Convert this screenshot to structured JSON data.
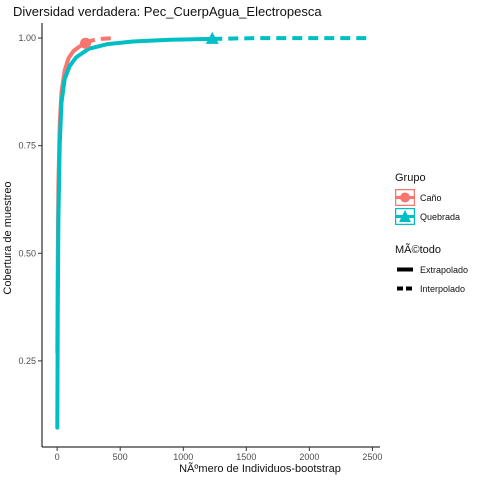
{
  "chart_data": {
    "type": "line",
    "title": "Diversidad verdadera: Pec_CuerpAgua_Electropesca",
    "xlabel": "NÃºmero de Individuos-bootstrap",
    "ylabel": "Cobertura de muestreo",
    "xlim": [
      -120,
      2560
    ],
    "ylim": [
      0.05,
      1.035
    ],
    "xticks": [
      0,
      500,
      1000,
      1500,
      2000,
      2500
    ],
    "xtick_labels": [
      "0",
      "500",
      "1000",
      "1500",
      "2000",
      "2500"
    ],
    "yticks": [
      0.25,
      0.5,
      0.75,
      1.0
    ],
    "ytick_labels": [
      "0.25",
      "0.50",
      "0.75",
      "1.00"
    ],
    "grid": false,
    "legend_position": "right",
    "series": [
      {
        "name": "Caño",
        "color": "#F8766D",
        "marker": "circle",
        "observed": [
          225,
          0.988
        ],
        "extrapolado": [
          [
            225,
            0.988
          ],
          [
            260,
            0.993
          ],
          [
            300,
            0.996
          ],
          [
            350,
            0.998
          ],
          [
            400,
            0.999
          ],
          [
            450,
            1.0
          ]
        ],
        "interpolado": [
          [
            1,
            0.27
          ],
          [
            5,
            0.5
          ],
          [
            10,
            0.66
          ],
          [
            20,
            0.8
          ],
          [
            35,
            0.875
          ],
          [
            60,
            0.925
          ],
          [
            90,
            0.953
          ],
          [
            130,
            0.97
          ],
          [
            175,
            0.98
          ],
          [
            225,
            0.988
          ]
        ]
      },
      {
        "name": "Quebrada",
        "color": "#00BFC4",
        "marker": "triangle",
        "observed": [
          1230,
          0.998
        ],
        "extrapolado": [
          [
            1230,
            0.998
          ],
          [
            1400,
            0.999
          ],
          [
            1600,
            1.0
          ],
          [
            1900,
            1.0
          ],
          [
            2200,
            1.0
          ],
          [
            2460,
            1.0
          ]
        ],
        "interpolado": [
          [
            1,
            0.095
          ],
          [
            5,
            0.38
          ],
          [
            10,
            0.58
          ],
          [
            20,
            0.75
          ],
          [
            35,
            0.85
          ],
          [
            60,
            0.905
          ],
          [
            100,
            0.935
          ],
          [
            150,
            0.955
          ],
          [
            250,
            0.975
          ],
          [
            400,
            0.986
          ],
          [
            600,
            0.992
          ],
          [
            900,
            0.996
          ],
          [
            1230,
            0.998
          ]
        ]
      }
    ],
    "legend": {
      "group_title": "Grupo",
      "groups": [
        "Caño",
        "Quebrada"
      ],
      "method_title": "MÃ©todo",
      "methods": [
        "Extrapolado",
        "Interpolado"
      ]
    }
  }
}
